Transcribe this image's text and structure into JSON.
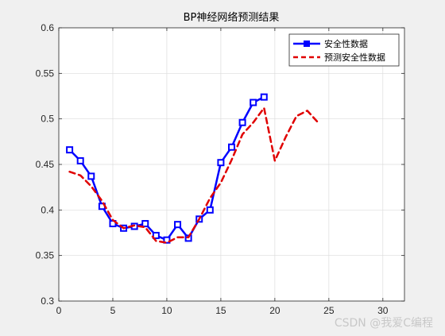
{
  "chart_data": {
    "type": "line",
    "title": "BP神经网络预测结果",
    "xlim": [
      0,
      32
    ],
    "ylim": [
      0.3,
      0.6
    ],
    "xticks": [
      0,
      5,
      10,
      15,
      20,
      25,
      30
    ],
    "yticks": [
      0.3,
      0.35,
      0.4,
      0.45,
      0.5,
      0.55,
      0.6
    ],
    "xtick_labels": [
      "0",
      "5",
      "10",
      "15",
      "20",
      "25",
      "30"
    ],
    "ytick_labels": [
      "0.3",
      "0.35",
      "0.4",
      "0.45",
      "0.5",
      "0.55",
      "0.6"
    ],
    "grid": true,
    "legend_position": "top-right",
    "series": [
      {
        "name": "安全性数据",
        "style": "solid-square-markers",
        "color": "#0000ff",
        "x": [
          1,
          2,
          3,
          4,
          5,
          6,
          7,
          8,
          9,
          10,
          11,
          12,
          13,
          14,
          15,
          16,
          17,
          18,
          19
        ],
        "y": [
          0.466,
          0.454,
          0.437,
          0.404,
          0.385,
          0.38,
          0.382,
          0.385,
          0.372,
          0.367,
          0.384,
          0.369,
          0.39,
          0.4,
          0.452,
          0.469,
          0.496,
          0.518,
          0.524
        ]
      },
      {
        "name": "预测安全性数据",
        "style": "dashed",
        "color": "#e00000",
        "x": [
          1,
          2,
          3,
          4,
          5,
          6,
          7,
          8,
          9,
          10,
          11,
          12,
          13,
          14,
          15,
          16,
          17,
          18,
          19,
          20,
          21,
          22,
          23,
          24
        ],
        "y": [
          0.442,
          0.438,
          0.426,
          0.41,
          0.389,
          0.38,
          0.383,
          0.381,
          0.366,
          0.364,
          0.37,
          0.37,
          0.39,
          0.413,
          0.43,
          0.455,
          0.483,
          0.496,
          0.512,
          0.454,
          0.48,
          0.503,
          0.509,
          0.496
        ]
      }
    ]
  },
  "watermark": "CSDN @我爱C编程"
}
